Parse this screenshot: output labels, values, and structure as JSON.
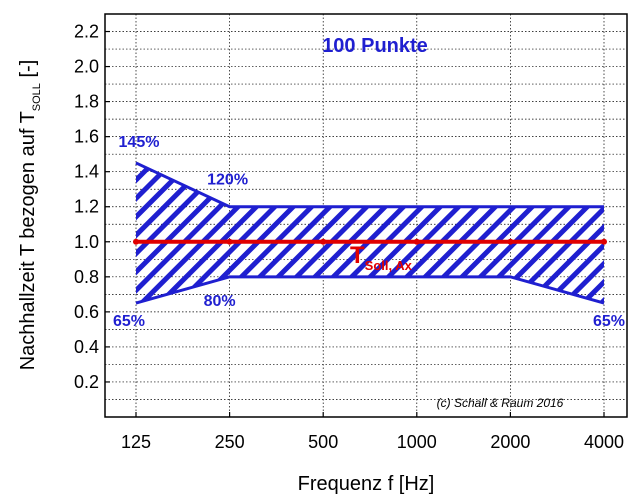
{
  "chart_data": {
    "type": "area",
    "title": "100 Punkte",
    "xlabel": "Frequenz f [Hz]",
    "ylabel_main": "Nachhallzeit T bezogen auf T",
    "ylabel_sub": "SOLL",
    "ylabel_end": " [-]",
    "categories": [
      "125",
      "250",
      "500",
      "1000",
      "2000",
      "4000"
    ],
    "yticks": [
      "0.2",
      "0.4",
      "0.6",
      "0.8",
      "1.0",
      "1.2",
      "1.4",
      "1.6",
      "1.8",
      "2.0",
      "2.2"
    ],
    "ylim": [
      0,
      2.3
    ],
    "grid": true,
    "upper_bound": [
      1.45,
      1.2,
      1.2,
      1.2,
      1.2,
      1.2
    ],
    "lower_bound": [
      0.65,
      0.8,
      0.8,
      0.8,
      0.8,
      0.65
    ],
    "reference_line": [
      1.0,
      1.0,
      1.0,
      1.0,
      1.0,
      1.0
    ],
    "reference_label_main": "T",
    "reference_label_sub": "Soll, Ax",
    "annotations": [
      {
        "text": "145%",
        "x": "125",
        "y": 1.45
      },
      {
        "text": "120%",
        "x": "250",
        "y": 1.2
      },
      {
        "text": "80%",
        "x": "250",
        "y": 0.8
      },
      {
        "text": "65%",
        "x": "125",
        "y": 0.65
      },
      {
        "text": "65%",
        "x": "4000",
        "y": 0.65
      }
    ],
    "copyright": "(c) Schall & Raum 2016",
    "colors": {
      "band": "#1f1fd0",
      "reference": "#e00000"
    }
  }
}
